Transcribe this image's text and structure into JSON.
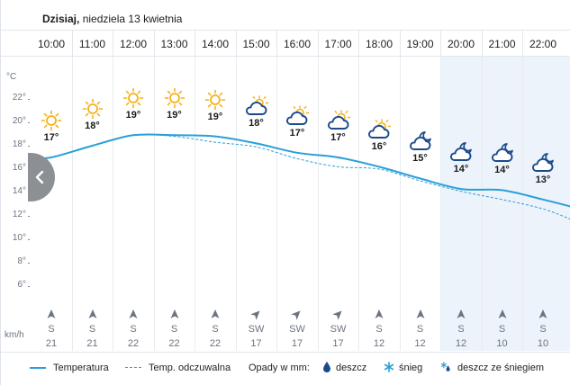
{
  "header": {
    "date_bold": "Dzisiaj,",
    "date_rest": " niedziela 13 kwietnia"
  },
  "units": {
    "temperature": "°C",
    "wind": "km/h"
  },
  "colors": {
    "temp_line": "#2a9fd8",
    "feels_line": "#2a9fd8",
    "sun": "#f5b21a",
    "cloud": "#1b4a8c",
    "night_band": "#edf3fa",
    "grid": "#e7ecf1",
    "arrow": "#6b7480"
  },
  "y_axis": {
    "ticks": [
      "22°",
      "20°",
      "18°",
      "16°",
      "14°",
      "12°",
      "10°",
      "8°",
      "6°"
    ]
  },
  "hours": [
    {
      "time": "10:00",
      "icon": "sun-icon",
      "temp_label": "17°",
      "temp": 17.0,
      "feels": 17.0,
      "wind_dir": "S",
      "wind_speed": "21",
      "arrow_deg": 0
    },
    {
      "time": "11:00",
      "icon": "sun-icon",
      "temp_label": "18°",
      "temp": 18.0,
      "feels": 18.0,
      "wind_dir": "S",
      "wind_speed": "21",
      "arrow_deg": 0
    },
    {
      "time": "12:00",
      "icon": "sun-icon",
      "temp_label": "19°",
      "temp": 18.9,
      "feels": 18.9,
      "wind_dir": "S",
      "wind_speed": "22",
      "arrow_deg": 0
    },
    {
      "time": "13:00",
      "icon": "sun-icon",
      "temp_label": "19°",
      "temp": 18.9,
      "feels": 18.8,
      "wind_dir": "S",
      "wind_speed": "22",
      "arrow_deg": 0
    },
    {
      "time": "14:00",
      "icon": "sun-icon",
      "temp_label": "19°",
      "temp": 18.8,
      "feels": 18.3,
      "wind_dir": "S",
      "wind_speed": "22",
      "arrow_deg": 0
    },
    {
      "time": "15:00",
      "icon": "sun-cloud-icon",
      "temp_label": "18°",
      "temp": 18.2,
      "feels": 17.9,
      "wind_dir": "SW",
      "wind_speed": "17",
      "arrow_deg": 45
    },
    {
      "time": "16:00",
      "icon": "sun-cloud-icon",
      "temp_label": "17°",
      "temp": 17.4,
      "feels": 16.9,
      "wind_dir": "SW",
      "wind_speed": "17",
      "arrow_deg": 45
    },
    {
      "time": "17:00",
      "icon": "sun-cloud-icon",
      "temp_label": "17°",
      "temp": 17.0,
      "feels": 16.2,
      "wind_dir": "SW",
      "wind_speed": "17",
      "arrow_deg": 45
    },
    {
      "time": "18:00",
      "icon": "sun-cloud-icon",
      "temp_label": "16°",
      "temp": 16.2,
      "feels": 16.0,
      "wind_dir": "S",
      "wind_speed": "12",
      "arrow_deg": 0
    },
    {
      "time": "19:00",
      "icon": "moon-cloud-icon",
      "temp_label": "15°",
      "temp": 15.2,
      "feels": 15.0,
      "wind_dir": "S",
      "wind_speed": "12",
      "arrow_deg": 0
    },
    {
      "time": "20:00",
      "icon": "moon-cloud-icon",
      "temp_label": "14°",
      "temp": 14.3,
      "feels": 14.1,
      "wind_dir": "S",
      "wind_speed": "12",
      "arrow_deg": 0
    },
    {
      "time": "21:00",
      "icon": "moon-cloud-icon",
      "temp_label": "14°",
      "temp": 14.2,
      "feels": 13.4,
      "wind_dir": "S",
      "wind_speed": "10",
      "arrow_deg": 0
    },
    {
      "time": "22:00",
      "icon": "moon-cloud-icon",
      "temp_label": "13°",
      "temp": 13.4,
      "feels": 12.6,
      "wind_dir": "S",
      "wind_speed": "10",
      "arrow_deg": 0
    }
  ],
  "legend": {
    "temperature": "Temperatura",
    "feels_like": "Temp. odczuwalna",
    "precip": "Opady w mm:",
    "rain": "deszcz",
    "snow": "śnieg",
    "sleet": "deszcz ze śniegiem"
  }
}
